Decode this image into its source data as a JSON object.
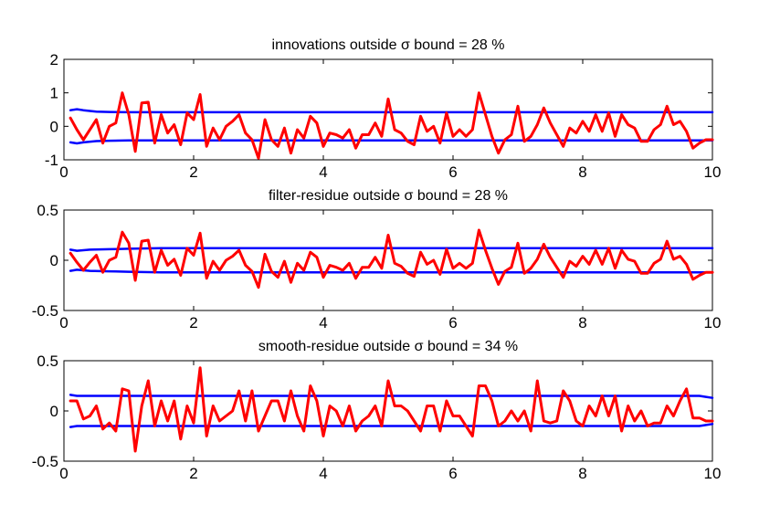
{
  "chart_data": [
    {
      "type": "line",
      "title": "innovations outside σ bound = 28 %",
      "xlim": [
        0,
        10
      ],
      "ylim": [
        -1,
        2
      ],
      "xticks": [
        0,
        2,
        4,
        6,
        8,
        10
      ],
      "xtick_labels": [
        "0",
        "2",
        "4",
        "6",
        "8",
        "10"
      ],
      "yticks": [
        -1,
        0,
        1,
        2
      ],
      "ytick_labels": [
        "-1",
        "0",
        "1",
        "2"
      ],
      "grid": false,
      "series": [
        {
          "color": "#ff0000",
          "x": [
            0.1,
            0.2,
            0.3,
            0.4,
            0.5,
            0.6,
            0.7,
            0.8,
            0.9,
            1.0,
            1.1,
            1.2,
            1.3,
            1.4,
            1.5,
            1.6,
            1.7,
            1.8,
            1.9,
            2.0,
            2.1,
            2.2,
            2.3,
            2.4,
            2.5,
            2.6,
            2.7,
            2.8,
            2.9,
            3.0,
            3.1,
            3.2,
            3.3,
            3.4,
            3.5,
            3.6,
            3.7,
            3.8,
            3.9,
            4.0,
            4.1,
            4.2,
            4.3,
            4.4,
            4.5,
            4.6,
            4.7,
            4.8,
            4.9,
            5.0,
            5.1,
            5.2,
            5.3,
            5.4,
            5.5,
            5.6,
            5.7,
            5.8,
            5.9,
            6.0,
            6.1,
            6.2,
            6.3,
            6.4,
            6.5,
            6.6,
            6.7,
            6.8,
            6.9,
            7.0,
            7.1,
            7.2,
            7.3,
            7.4,
            7.5,
            7.6,
            7.7,
            7.8,
            7.9,
            8.0,
            8.1,
            8.2,
            8.3,
            8.4,
            8.5,
            8.6,
            8.7,
            8.8,
            8.9,
            9.0,
            9.1,
            9.2,
            9.3,
            9.4,
            9.5,
            9.6,
            9.7,
            9.8,
            9.9,
            10.0
          ],
          "y": [
            0.25,
            -0.1,
            -0.4,
            -0.1,
            0.2,
            -0.5,
            0.0,
            0.1,
            1.0,
            0.35,
            -0.75,
            0.7,
            0.72,
            -0.5,
            0.35,
            -0.2,
            0.05,
            -0.55,
            0.4,
            0.2,
            0.95,
            -0.6,
            -0.05,
            -0.4,
            0.0,
            0.15,
            0.35,
            -0.2,
            -0.4,
            -0.95,
            0.2,
            -0.4,
            -0.6,
            -0.05,
            -0.8,
            -0.1,
            -0.35,
            0.3,
            0.1,
            -0.6,
            -0.2,
            -0.25,
            -0.35,
            -0.1,
            -0.65,
            -0.25,
            -0.25,
            0.1,
            -0.3,
            0.82,
            -0.1,
            -0.2,
            -0.45,
            -0.55,
            0.3,
            -0.15,
            0.0,
            -0.5,
            0.4,
            -0.3,
            -0.1,
            -0.3,
            -0.1,
            1.0,
            0.35,
            -0.3,
            -0.8,
            -0.4,
            -0.25,
            0.6,
            -0.45,
            -0.3,
            0.05,
            0.55,
            0.1,
            -0.25,
            -0.6,
            -0.05,
            -0.2,
            0.15,
            -0.15,
            0.35,
            -0.15,
            0.4,
            -0.3,
            0.35,
            0.05,
            -0.05,
            -0.45,
            -0.45,
            -0.1,
            0.05,
            0.6,
            0.05,
            0.15,
            -0.15,
            -0.65,
            -0.5,
            -0.4,
            -0.4
          ]
        },
        {
          "color": "#0000ff",
          "x": [
            0.1,
            0.2,
            0.3,
            0.5,
            0.7,
            1.0,
            1.5,
            2.0,
            10.0
          ],
          "y": [
            0.48,
            0.51,
            0.48,
            0.44,
            0.43,
            0.42,
            0.42,
            0.42,
            0.42
          ]
        },
        {
          "color": "#0000ff",
          "x": [
            0.1,
            0.2,
            0.3,
            0.5,
            0.7,
            1.0,
            1.5,
            2.0,
            10.0
          ],
          "y": [
            -0.48,
            -0.51,
            -0.48,
            -0.44,
            -0.43,
            -0.42,
            -0.42,
            -0.42,
            -0.42
          ]
        }
      ]
    },
    {
      "type": "line",
      "title": "filter-residue outside σ bound = 28 %",
      "xlim": [
        0,
        10
      ],
      "ylim": [
        -0.5,
        0.5
      ],
      "xticks": [
        0,
        2,
        4,
        6,
        8,
        10
      ],
      "xtick_labels": [
        "0",
        "2",
        "4",
        "6",
        "8",
        "10"
      ],
      "yticks": [
        -0.5,
        0,
        0.5
      ],
      "ytick_labels": [
        "-0.5",
        "0",
        "0.5"
      ],
      "grid": false,
      "series": [
        {
          "color": "#ff0000",
          "x": [
            0.1,
            0.2,
            0.3,
            0.4,
            0.5,
            0.6,
            0.7,
            0.8,
            0.9,
            1.0,
            1.1,
            1.2,
            1.3,
            1.4,
            1.5,
            1.6,
            1.7,
            1.8,
            1.9,
            2.0,
            2.1,
            2.2,
            2.3,
            2.4,
            2.5,
            2.6,
            2.7,
            2.8,
            2.9,
            3.0,
            3.1,
            3.2,
            3.3,
            3.4,
            3.5,
            3.6,
            3.7,
            3.8,
            3.9,
            4.0,
            4.1,
            4.2,
            4.3,
            4.4,
            4.5,
            4.6,
            4.7,
            4.8,
            4.9,
            5.0,
            5.1,
            5.2,
            5.3,
            5.4,
            5.5,
            5.6,
            5.7,
            5.8,
            5.9,
            6.0,
            6.1,
            6.2,
            6.3,
            6.4,
            6.5,
            6.6,
            6.7,
            6.8,
            6.9,
            7.0,
            7.1,
            7.2,
            7.3,
            7.4,
            7.5,
            7.6,
            7.7,
            7.8,
            7.9,
            8.0,
            8.1,
            8.2,
            8.3,
            8.4,
            8.5,
            8.6,
            8.7,
            8.8,
            8.9,
            9.0,
            9.1,
            9.2,
            9.3,
            9.4,
            9.5,
            9.6,
            9.7,
            9.8,
            9.9,
            10.0
          ],
          "y": [
            0.07,
            -0.02,
            -0.1,
            -0.02,
            0.05,
            -0.12,
            0.0,
            0.03,
            0.28,
            0.17,
            -0.2,
            0.19,
            0.2,
            -0.12,
            0.1,
            -0.05,
            0.01,
            -0.15,
            0.12,
            0.05,
            0.27,
            -0.18,
            -0.01,
            -0.1,
            0.0,
            0.04,
            0.1,
            -0.05,
            -0.11,
            -0.27,
            0.06,
            -0.11,
            -0.17,
            -0.01,
            -0.22,
            -0.03,
            -0.1,
            0.08,
            0.03,
            -0.17,
            -0.05,
            -0.07,
            -0.1,
            -0.03,
            -0.18,
            -0.07,
            -0.07,
            0.03,
            -0.08,
            0.25,
            -0.03,
            -0.06,
            -0.13,
            -0.16,
            0.08,
            -0.04,
            0.0,
            -0.14,
            0.11,
            -0.08,
            -0.03,
            -0.08,
            -0.03,
            0.3,
            0.1,
            -0.08,
            -0.24,
            -0.11,
            -0.07,
            0.17,
            -0.13,
            -0.08,
            0.01,
            0.16,
            0.03,
            -0.07,
            -0.17,
            -0.01,
            -0.06,
            0.04,
            -0.04,
            0.1,
            -0.04,
            0.12,
            -0.08,
            0.1,
            0.01,
            -0.01,
            -0.13,
            -0.13,
            -0.03,
            0.01,
            0.19,
            0.01,
            0.04,
            -0.04,
            -0.19,
            -0.15,
            -0.12,
            -0.12
          ]
        },
        {
          "color": "#0000ff",
          "x": [
            0.1,
            0.2,
            0.4,
            0.7,
            1.0,
            1.5,
            2.0,
            10.0
          ],
          "y": [
            0.105,
            0.095,
            0.105,
            0.11,
            0.115,
            0.12,
            0.12,
            0.12
          ]
        },
        {
          "color": "#0000ff",
          "x": [
            0.1,
            0.2,
            0.4,
            0.7,
            1.0,
            1.5,
            2.0,
            10.0
          ],
          "y": [
            -0.105,
            -0.095,
            -0.105,
            -0.11,
            -0.115,
            -0.12,
            -0.12,
            -0.12
          ]
        }
      ]
    },
    {
      "type": "line",
      "title": "smooth-residue outside σ bound = 34 %",
      "xlim": [
        0,
        10
      ],
      "ylim": [
        -0.5,
        0.5
      ],
      "xticks": [
        0,
        2,
        4,
        6,
        8,
        10
      ],
      "xtick_labels": [
        "0",
        "2",
        "4",
        "6",
        "8",
        "10"
      ],
      "yticks": [
        -0.5,
        0,
        0.5
      ],
      "ytick_labels": [
        "-0.5",
        "0",
        "0.5"
      ],
      "grid": false,
      "series": [
        {
          "color": "#ff0000",
          "x": [
            0.1,
            0.2,
            0.3,
            0.4,
            0.5,
            0.6,
            0.7,
            0.8,
            0.9,
            1.0,
            1.1,
            1.2,
            1.3,
            1.4,
            1.5,
            1.6,
            1.7,
            1.8,
            1.9,
            2.0,
            2.1,
            2.2,
            2.3,
            2.4,
            2.5,
            2.6,
            2.7,
            2.8,
            2.9,
            3.0,
            3.1,
            3.2,
            3.3,
            3.4,
            3.5,
            3.6,
            3.7,
            3.8,
            3.9,
            4.0,
            4.1,
            4.2,
            4.3,
            4.4,
            4.5,
            4.6,
            4.7,
            4.8,
            4.9,
            5.0,
            5.1,
            5.2,
            5.3,
            5.4,
            5.5,
            5.6,
            5.7,
            5.8,
            5.9,
            6.0,
            6.1,
            6.2,
            6.3,
            6.4,
            6.5,
            6.6,
            6.7,
            6.8,
            6.9,
            7.0,
            7.1,
            7.2,
            7.3,
            7.4,
            7.5,
            7.6,
            7.7,
            7.8,
            7.9,
            8.0,
            8.1,
            8.2,
            8.3,
            8.4,
            8.5,
            8.6,
            8.7,
            8.8,
            8.9,
            9.0,
            9.1,
            9.2,
            9.3,
            9.4,
            9.5,
            9.6,
            9.7,
            9.8,
            9.9,
            10.0
          ],
          "y": [
            0.1,
            0.1,
            -0.08,
            -0.05,
            0.05,
            -0.18,
            -0.12,
            -0.2,
            0.22,
            0.2,
            -0.4,
            0.05,
            0.3,
            -0.15,
            0.1,
            -0.1,
            0.1,
            -0.28,
            0.05,
            -0.12,
            0.43,
            -0.25,
            0.05,
            -0.1,
            -0.05,
            0.0,
            0.2,
            -0.1,
            0.2,
            -0.2,
            -0.05,
            0.1,
            0.1,
            -0.1,
            0.2,
            -0.05,
            -0.2,
            0.25,
            0.1,
            -0.25,
            0.05,
            0.0,
            -0.15,
            0.05,
            -0.2,
            -0.1,
            -0.05,
            0.05,
            -0.15,
            0.3,
            0.05,
            0.05,
            0.0,
            -0.1,
            -0.2,
            0.05,
            0.05,
            -0.2,
            0.1,
            -0.05,
            -0.05,
            -0.15,
            -0.25,
            0.25,
            0.25,
            0.1,
            -0.15,
            -0.1,
            0.0,
            -0.1,
            0.0,
            -0.2,
            0.3,
            -0.1,
            -0.12,
            -0.1,
            0.2,
            0.1,
            -0.1,
            -0.15,
            0.05,
            -0.05,
            0.15,
            -0.05,
            0.15,
            -0.2,
            0.05,
            -0.1,
            0.0,
            -0.15,
            -0.12,
            -0.12,
            0.05,
            -0.05,
            0.1,
            0.22,
            -0.07,
            -0.07,
            -0.1,
            -0.1
          ]
        },
        {
          "color": "#0000ff",
          "x": [
            0.1,
            0.2,
            0.5,
            1.0,
            2.0,
            9.0,
            9.6,
            9.8,
            9.9,
            10.0
          ],
          "y": [
            0.16,
            0.15,
            0.15,
            0.15,
            0.15,
            0.15,
            0.15,
            0.15,
            0.14,
            0.13
          ]
        },
        {
          "color": "#0000ff",
          "x": [
            0.1,
            0.2,
            0.5,
            1.0,
            2.0,
            9.0,
            9.6,
            9.8,
            9.9,
            10.0
          ],
          "y": [
            -0.16,
            -0.15,
            -0.15,
            -0.15,
            -0.15,
            -0.15,
            -0.15,
            -0.15,
            -0.14,
            -0.13
          ]
        }
      ]
    }
  ]
}
